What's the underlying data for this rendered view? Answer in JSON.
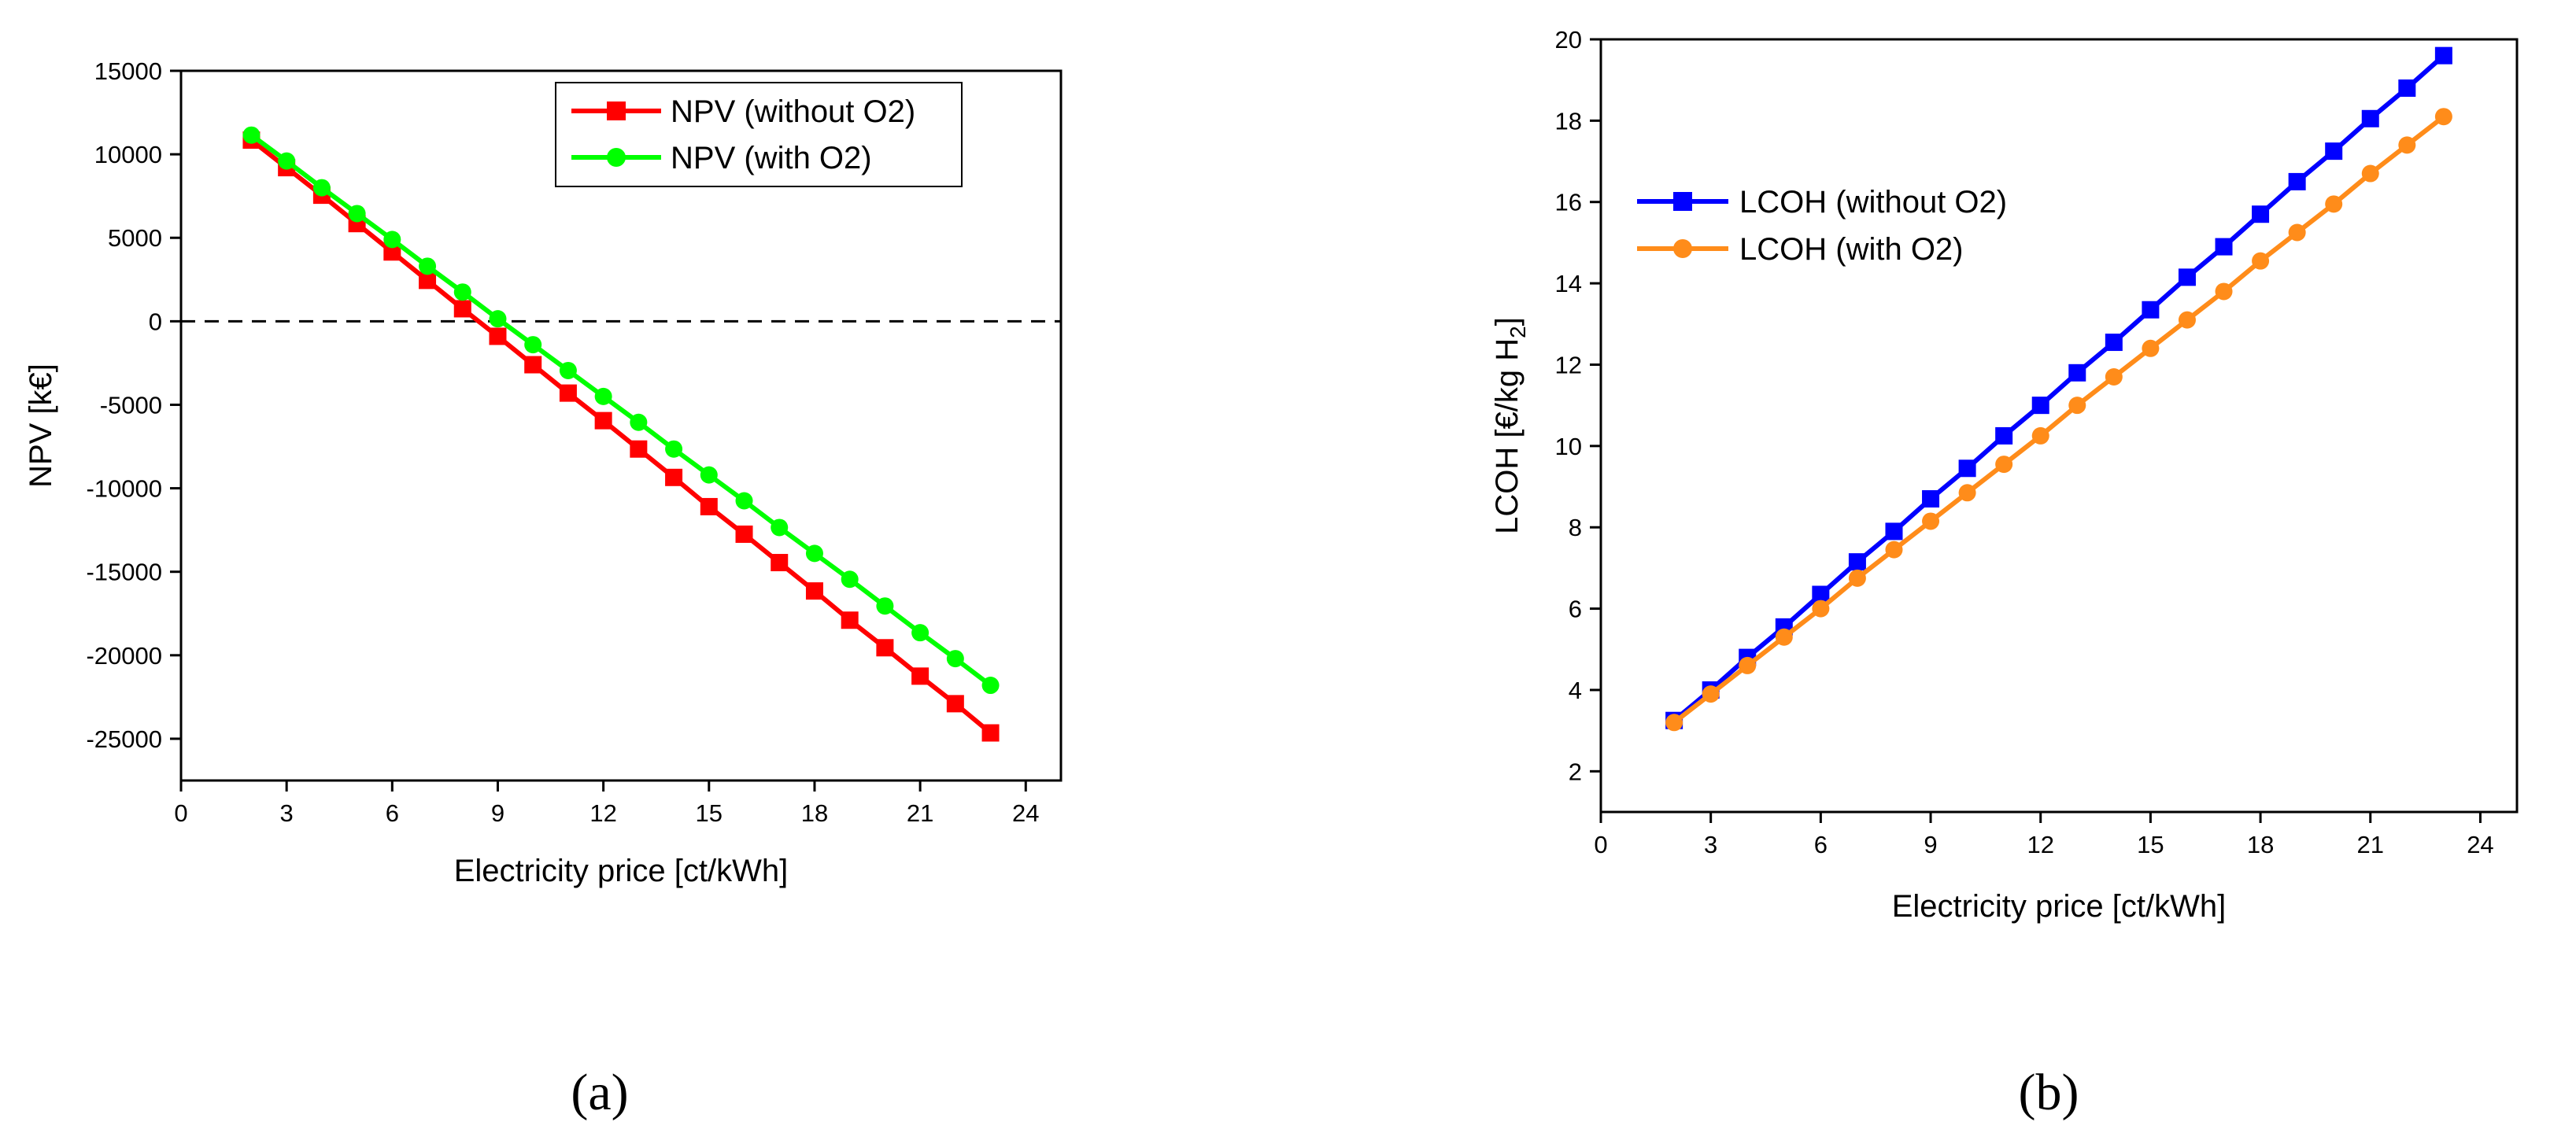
{
  "chart_data": [
    {
      "type": "line",
      "panel_label": "(a)",
      "xlabel": "Electricity price [ct/kWh]",
      "ylabel": "NPV [k€]",
      "xlim": [
        0,
        25
      ],
      "ylim": [
        -27500,
        15000
      ],
      "xticks": [
        "0",
        "3",
        "6",
        "9",
        "12",
        "15",
        "18",
        "21",
        "24"
      ],
      "yticks": [
        "15000",
        "10000",
        "5000",
        "0",
        "-5000",
        "-10000",
        "-15000",
        "-20000",
        "-25000"
      ],
      "grid": false,
      "legend_position": "top-right",
      "reference_line": {
        "y": 0,
        "style": "dashed"
      },
      "x": [
        2,
        3,
        4,
        5,
        6,
        7,
        8,
        9,
        10,
        11,
        12,
        13,
        14,
        15,
        16,
        17,
        18,
        19,
        20,
        21,
        22,
        23
      ],
      "series": [
        {
          "name": "NPV (without O2)",
          "color": "#ff0000",
          "marker": "square",
          "values": [
            10850,
            9200,
            7550,
            5850,
            4150,
            2450,
            750,
            -900,
            -2600,
            -4300,
            -5950,
            -7650,
            -9350,
            -11100,
            -12750,
            -14450,
            -16150,
            -17900,
            -19550,
            -21250,
            -22900,
            -24650
          ]
        },
        {
          "name": "NPV (with O2)",
          "color": "#00ff00",
          "marker": "circle",
          "values": [
            11150,
            9600,
            8000,
            6450,
            4900,
            3300,
            1750,
            150,
            -1400,
            -2950,
            -4500,
            -6050,
            -7650,
            -9200,
            -10750,
            -12350,
            -13900,
            -15450,
            -17050,
            -18650,
            -20200,
            -21800
          ]
        }
      ]
    },
    {
      "type": "line",
      "panel_label": "(b)",
      "xlabel": "Electricity price [ct/kWh]",
      "ylabel": "LCOH [€/kg H",
      "ylabel_subscript": "2",
      "ylabel_suffix": "]",
      "xlim": [
        0,
        25
      ],
      "ylim": [
        1,
        20
      ],
      "xticks": [
        "0",
        "3",
        "6",
        "9",
        "12",
        "15",
        "18",
        "21",
        "24"
      ],
      "yticks": [
        "20",
        "18",
        "16",
        "14",
        "12",
        "10",
        "8",
        "6",
        "4",
        "2"
      ],
      "grid": false,
      "legend_position": "top-left",
      "x": [
        2,
        3,
        4,
        5,
        6,
        7,
        8,
        9,
        10,
        11,
        12,
        13,
        14,
        15,
        16,
        17,
        18,
        19,
        20,
        21,
        22,
        23
      ],
      "series": [
        {
          "name": "LCOH (without O2)",
          "color": "#0000ff",
          "marker": "square",
          "values": [
            3.25,
            4.0,
            4.8,
            5.55,
            6.35,
            7.15,
            7.9,
            8.7,
            9.45,
            10.25,
            11.0,
            11.8,
            12.55,
            13.35,
            14.15,
            14.9,
            15.7,
            16.5,
            17.25,
            18.05,
            18.8,
            19.6
          ]
        },
        {
          "name": "LCOH (with O2)",
          "color": "#ff8c1a",
          "marker": "circle",
          "values": [
            3.2,
            3.9,
            4.6,
            5.3,
            6.0,
            6.75,
            7.45,
            8.15,
            8.85,
            9.55,
            10.25,
            11.0,
            11.7,
            12.4,
            13.1,
            13.8,
            14.55,
            15.25,
            15.95,
            16.7,
            17.4,
            18.1
          ]
        }
      ]
    }
  ]
}
